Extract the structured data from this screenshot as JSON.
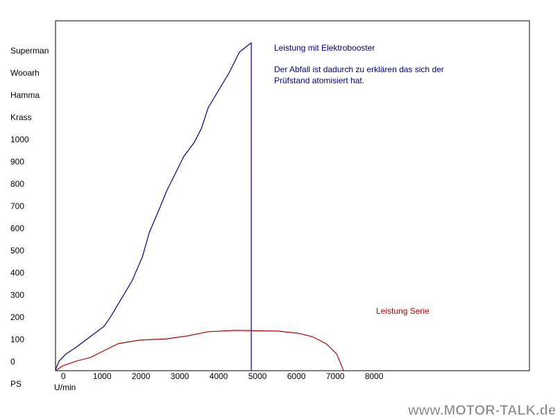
{
  "chart_data": {
    "type": "line",
    "xlabel": "U/min",
    "ylabel": "PS",
    "xlim": [
      -200,
      12000
    ],
    "ylim": [
      -37.5,
      1537.5
    ],
    "xticks": [
      0,
      1000,
      2000,
      3000,
      4000,
      5000,
      6000,
      7000,
      8000
    ],
    "yticks": [
      0,
      100,
      200,
      300,
      400,
      500,
      600,
      700,
      800,
      900,
      1000,
      {
        "value": 1100,
        "label": "Krass"
      },
      {
        "value": 1200,
        "label": "Hamma"
      },
      {
        "value": 1300,
        "label": "Wooarh"
      },
      {
        "value": 1400,
        "label": "Superman"
      }
    ],
    "grid": false,
    "series": [
      {
        "name": "Leistung mit Elektrobooster",
        "color": "#000080",
        "x": [
          -196,
          -107,
          71,
          339,
          696,
          1054,
          1232,
          1500,
          1768,
          2036,
          2214,
          2482,
          2661,
          2929,
          3107,
          3375,
          3554,
          3732,
          4000,
          4268,
          4536,
          4714,
          4839,
          4839
        ],
        "values": [
          -31,
          6,
          38,
          69,
          116,
          163,
          209,
          288,
          366,
          475,
          584,
          694,
          772,
          866,
          928,
          991,
          1053,
          1147,
          1225,
          1303,
          1397,
          1422,
          1438,
          -37
        ]
      },
      {
        "name": "Leistung Serie",
        "color": "#b00000",
        "x": [
          -196,
          -18,
          339,
          696,
          1054,
          1411,
          1946,
          2661,
          3196,
          3732,
          4446,
          5518,
          6054,
          6411,
          6768,
          7036,
          7214
        ],
        "values": [
          -37,
          -16,
          6,
          22,
          53,
          84,
          100,
          106,
          119,
          138,
          144,
          141,
          131,
          116,
          84,
          38,
          -37
        ]
      }
    ],
    "annotations": [
      {
        "text": "Der Abfall ist dadurch zu erklären das sich der",
        "color": "#000080"
      },
      {
        "text": "Prüfstand atomisiert hat.",
        "color": "#000080"
      }
    ],
    "watermark": "www.MOTOR-TALK.de"
  }
}
